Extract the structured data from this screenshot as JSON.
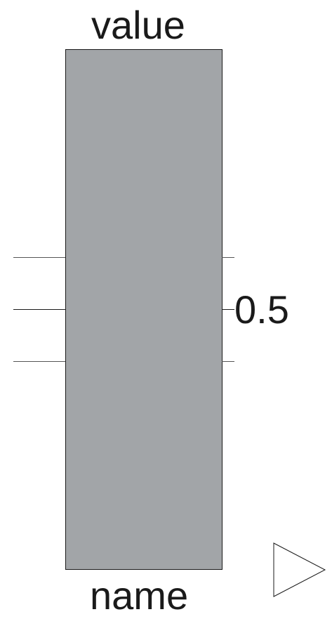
{
  "block": {
    "top_label": "value",
    "bottom_label": "name",
    "value_readout": "0.5",
    "level": 0.5,
    "fill_color": "#a2a5a8",
    "border_color": "#1a1a1a"
  },
  "output_port": {
    "icon": "triangle-right-icon"
  }
}
